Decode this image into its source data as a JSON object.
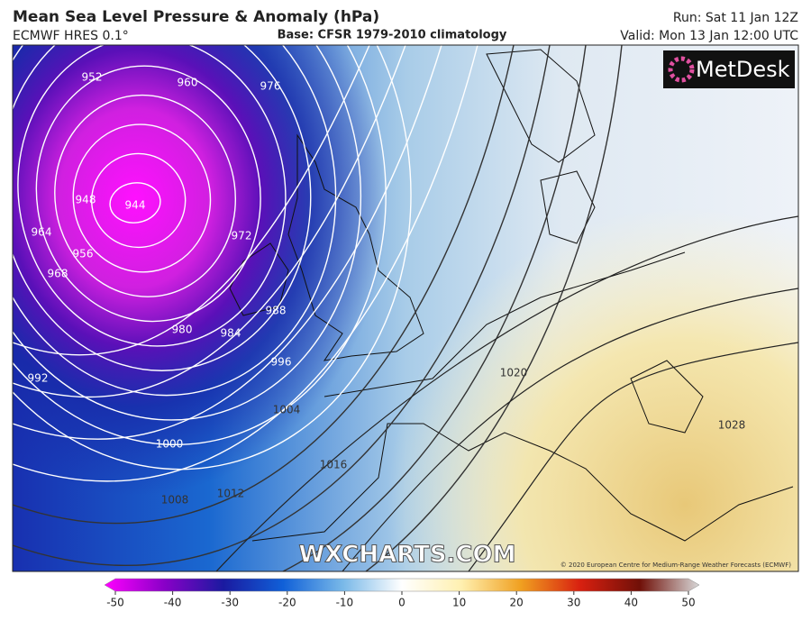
{
  "header": {
    "title": "Mean Sea Level Pressure & Anomaly (hPa)",
    "model": "ECMWF HRES 0.1°",
    "base": "Base: CFSR 1979-2010 climatology",
    "run": "Run: Sat 11 Jan 12Z",
    "valid": "Valid: Mon 13 Jan 12:00 UTC"
  },
  "logo": "MetDesk",
  "watermark": "WXCHARTS.COM",
  "copyright": "© 2020 European Centre for Medium-Range Weather Forecasts (ECMWF)",
  "contour_labels": [
    "944",
    "948",
    "952",
    "956",
    "960",
    "964",
    "968",
    "972",
    "976",
    "980",
    "984",
    "988",
    "992",
    "996",
    "1000",
    "1004",
    "1008",
    "1012",
    "1016",
    "1020",
    "1028"
  ],
  "colorbar": {
    "ticks": [
      -50,
      -40,
      -30,
      -20,
      -10,
      0,
      10,
      20,
      30,
      40,
      50
    ],
    "colors": [
      "#ff00ff",
      "#8a00c8",
      "#1a1aa0",
      "#1060d8",
      "#78b8e8",
      "#ffffff",
      "#fff0b0",
      "#f0a020",
      "#d82010",
      "#701008",
      "#d8d8d8"
    ]
  }
}
